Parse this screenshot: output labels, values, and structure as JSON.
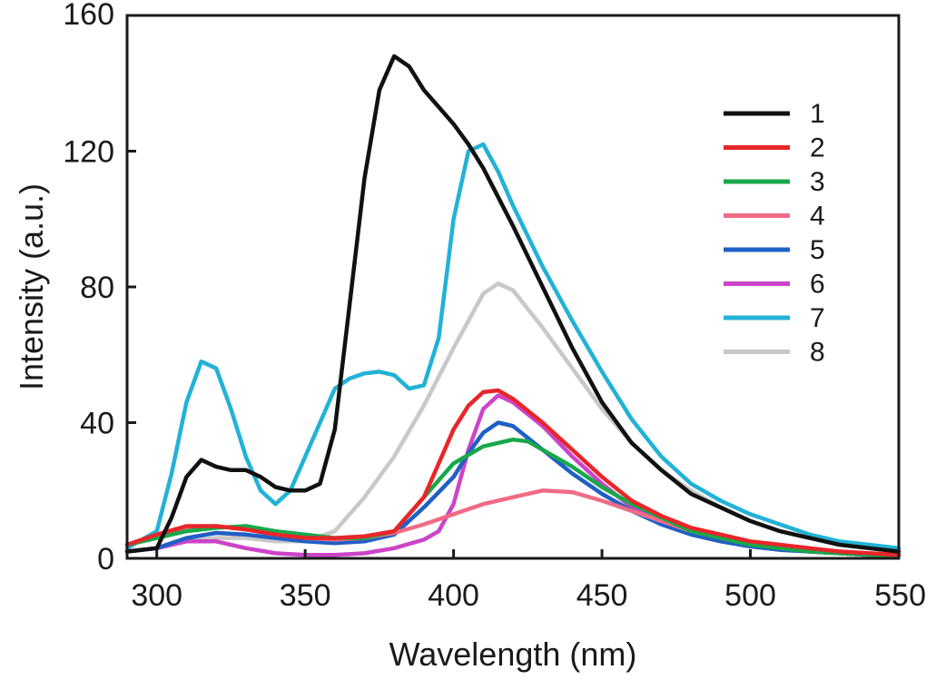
{
  "chart_data": {
    "type": "line",
    "title": "",
    "xlabel": "Wavelength (nm)",
    "ylabel": "Intensity (a.u.)",
    "xlim": [
      290,
      550
    ],
    "ylim": [
      0,
      160
    ],
    "xticks": [
      300,
      350,
      400,
      450,
      500,
      550
    ],
    "yticks": [
      0,
      40,
      80,
      120,
      160
    ],
    "grid": false,
    "legend_position": "upper-right",
    "series": [
      {
        "name": "1",
        "color": "#111111",
        "points": [
          [
            290,
            2
          ],
          [
            300,
            3
          ],
          [
            305,
            12
          ],
          [
            310,
            24
          ],
          [
            315,
            29
          ],
          [
            320,
            27
          ],
          [
            325,
            26
          ],
          [
            330,
            26
          ],
          [
            335,
            24
          ],
          [
            340,
            21
          ],
          [
            345,
            20
          ],
          [
            350,
            20
          ],
          [
            355,
            22
          ],
          [
            360,
            38
          ],
          [
            365,
            75
          ],
          [
            370,
            112
          ],
          [
            375,
            138
          ],
          [
            380,
            148
          ],
          [
            385,
            145
          ],
          [
            390,
            138
          ],
          [
            395,
            133
          ],
          [
            400,
            128
          ],
          [
            405,
            122
          ],
          [
            410,
            115
          ],
          [
            420,
            98
          ],
          [
            430,
            80
          ],
          [
            440,
            62
          ],
          [
            450,
            46
          ],
          [
            460,
            34
          ],
          [
            470,
            26
          ],
          [
            480,
            19
          ],
          [
            490,
            15
          ],
          [
            500,
            11
          ],
          [
            510,
            8
          ],
          [
            520,
            6
          ],
          [
            530,
            4
          ],
          [
            540,
            3
          ],
          [
            550,
            2
          ]
        ]
      },
      {
        "name": "2",
        "color": "#e8262a",
        "points": [
          [
            290,
            4
          ],
          [
            300,
            7
          ],
          [
            310,
            9.5
          ],
          [
            320,
            9.5
          ],
          [
            330,
            8.5
          ],
          [
            340,
            7
          ],
          [
            350,
            6
          ],
          [
            360,
            6
          ],
          [
            370,
            6.5
          ],
          [
            380,
            8
          ],
          [
            390,
            18
          ],
          [
            395,
            28
          ],
          [
            400,
            38
          ],
          [
            405,
            45
          ],
          [
            410,
            49
          ],
          [
            415,
            49.5
          ],
          [
            420,
            47
          ],
          [
            430,
            40
          ],
          [
            440,
            32
          ],
          [
            450,
            24
          ],
          [
            460,
            17
          ],
          [
            470,
            12.5
          ],
          [
            480,
            9
          ],
          [
            490,
            7
          ],
          [
            500,
            5
          ],
          [
            510,
            4
          ],
          [
            520,
            3
          ],
          [
            530,
            2
          ],
          [
            540,
            1.5
          ],
          [
            550,
            1
          ]
        ]
      },
      {
        "name": "3",
        "color": "#18a84b",
        "points": [
          [
            290,
            4
          ],
          [
            300,
            6
          ],
          [
            310,
            8
          ],
          [
            320,
            9
          ],
          [
            330,
            9.5
          ],
          [
            340,
            8
          ],
          [
            350,
            7
          ],
          [
            360,
            6
          ],
          [
            370,
            6
          ],
          [
            380,
            8
          ],
          [
            390,
            18
          ],
          [
            400,
            28
          ],
          [
            410,
            33
          ],
          [
            420,
            35
          ],
          [
            425,
            34.5
          ],
          [
            430,
            32
          ],
          [
            440,
            27
          ],
          [
            450,
            21
          ],
          [
            460,
            16
          ],
          [
            470,
            12
          ],
          [
            480,
            8
          ],
          [
            490,
            6
          ],
          [
            500,
            4
          ],
          [
            510,
            3
          ],
          [
            520,
            2
          ],
          [
            530,
            1.5
          ],
          [
            540,
            1
          ],
          [
            550,
            1
          ]
        ]
      },
      {
        "name": "4",
        "color": "#f06b86",
        "points": [
          [
            290,
            4
          ],
          [
            300,
            6
          ],
          [
            310,
            9
          ],
          [
            320,
            9.5
          ],
          [
            330,
            8.5
          ],
          [
            340,
            7.5
          ],
          [
            350,
            6
          ],
          [
            360,
            5.5
          ],
          [
            370,
            6
          ],
          [
            380,
            7.5
          ],
          [
            390,
            10
          ],
          [
            400,
            13
          ],
          [
            410,
            16
          ],
          [
            420,
            18
          ],
          [
            430,
            20
          ],
          [
            440,
            19.5
          ],
          [
            450,
            17
          ],
          [
            460,
            14
          ],
          [
            470,
            11
          ],
          [
            480,
            8
          ],
          [
            490,
            6
          ],
          [
            500,
            4.5
          ],
          [
            510,
            3.5
          ],
          [
            520,
            2.5
          ],
          [
            530,
            2
          ],
          [
            540,
            1.5
          ],
          [
            550,
            1
          ]
        ]
      },
      {
        "name": "5",
        "color": "#1f5fc6",
        "points": [
          [
            290,
            2
          ],
          [
            300,
            3
          ],
          [
            310,
            6
          ],
          [
            320,
            7.5
          ],
          [
            330,
            7
          ],
          [
            340,
            6
          ],
          [
            350,
            5
          ],
          [
            360,
            4.5
          ],
          [
            370,
            5
          ],
          [
            380,
            7
          ],
          [
            390,
            15
          ],
          [
            400,
            24
          ],
          [
            405,
            31
          ],
          [
            410,
            37
          ],
          [
            415,
            40
          ],
          [
            420,
            39
          ],
          [
            430,
            32
          ],
          [
            440,
            25
          ],
          [
            450,
            19
          ],
          [
            460,
            14
          ],
          [
            470,
            10
          ],
          [
            480,
            7
          ],
          [
            490,
            5
          ],
          [
            500,
            3.5
          ],
          [
            510,
            2.5
          ],
          [
            520,
            2
          ],
          [
            530,
            1.5
          ],
          [
            540,
            1
          ],
          [
            550,
            1
          ]
        ]
      },
      {
        "name": "6",
        "color": "#cc44c8",
        "points": [
          [
            290,
            2
          ],
          [
            300,
            3
          ],
          [
            310,
            5
          ],
          [
            320,
            5
          ],
          [
            330,
            3
          ],
          [
            340,
            1.5
          ],
          [
            350,
            1
          ],
          [
            360,
            1
          ],
          [
            370,
            1.5
          ],
          [
            380,
            3
          ],
          [
            390,
            5.5
          ],
          [
            395,
            8
          ],
          [
            400,
            16
          ],
          [
            405,
            32
          ],
          [
            410,
            44
          ],
          [
            415,
            48
          ],
          [
            420,
            46
          ],
          [
            430,
            39
          ],
          [
            440,
            30
          ],
          [
            450,
            22
          ],
          [
            460,
            15
          ],
          [
            470,
            10.5
          ],
          [
            480,
            7.5
          ],
          [
            490,
            5.5
          ],
          [
            500,
            4
          ],
          [
            510,
            3
          ],
          [
            520,
            2
          ],
          [
            530,
            1.5
          ],
          [
            540,
            1
          ],
          [
            550,
            1
          ]
        ]
      },
      {
        "name": "7",
        "color": "#22b2d6",
        "points": [
          [
            290,
            3
          ],
          [
            300,
            8
          ],
          [
            305,
            25
          ],
          [
            310,
            46
          ],
          [
            315,
            58
          ],
          [
            320,
            56
          ],
          [
            325,
            44
          ],
          [
            330,
            30
          ],
          [
            335,
            20
          ],
          [
            340,
            16
          ],
          [
            345,
            20
          ],
          [
            350,
            30
          ],
          [
            355,
            40
          ],
          [
            360,
            50
          ],
          [
            365,
            53
          ],
          [
            370,
            54.5
          ],
          [
            375,
            55
          ],
          [
            380,
            54
          ],
          [
            385,
            50
          ],
          [
            390,
            51
          ],
          [
            395,
            65
          ],
          [
            400,
            100
          ],
          [
            405,
            120
          ],
          [
            410,
            122
          ],
          [
            415,
            114
          ],
          [
            420,
            104
          ],
          [
            430,
            86
          ],
          [
            440,
            70
          ],
          [
            450,
            55
          ],
          [
            460,
            41
          ],
          [
            470,
            30
          ],
          [
            480,
            22
          ],
          [
            490,
            17
          ],
          [
            500,
            13
          ],
          [
            510,
            10
          ],
          [
            520,
            7
          ],
          [
            530,
            5
          ],
          [
            540,
            4
          ],
          [
            550,
            3
          ]
        ]
      },
      {
        "name": "8",
        "color": "#c8c8c8",
        "points": [
          [
            290,
            2
          ],
          [
            300,
            3
          ],
          [
            310,
            5
          ],
          [
            320,
            6
          ],
          [
            330,
            6
          ],
          [
            340,
            5
          ],
          [
            350,
            5
          ],
          [
            360,
            8
          ],
          [
            370,
            18
          ],
          [
            380,
            30
          ],
          [
            390,
            45
          ],
          [
            400,
            62
          ],
          [
            410,
            78
          ],
          [
            415,
            81
          ],
          [
            420,
            79
          ],
          [
            430,
            68
          ],
          [
            440,
            56
          ],
          [
            450,
            44
          ],
          [
            460,
            34
          ],
          [
            470,
            26
          ],
          [
            480,
            20
          ],
          [
            490,
            15
          ],
          [
            500,
            11
          ],
          [
            510,
            8
          ],
          [
            520,
            6
          ],
          [
            530,
            4.5
          ],
          [
            540,
            3
          ],
          [
            550,
            2
          ]
        ]
      }
    ]
  }
}
